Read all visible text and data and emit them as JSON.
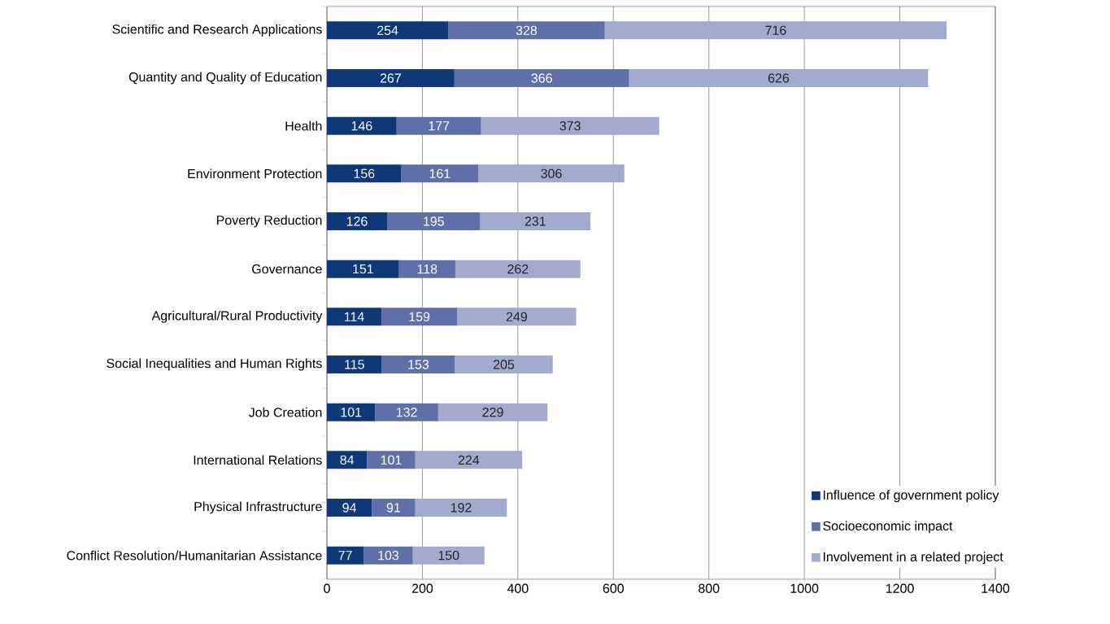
{
  "chart_data": {
    "type": "bar",
    "orientation": "horizontal",
    "stacked": true,
    "data_labels": true,
    "grid": "x",
    "legend": "bottom right",
    "categories": [
      "Scientific and Research Applications",
      "Quantity and Quality of Education",
      "Health",
      "Environment Protection",
      "Poverty Reduction",
      "Governance",
      "Agricultural/Rural Productivity",
      "Social Inequalities and Human Rights",
      "Job Creation",
      "International Relations",
      "Physical Infrastructure",
      "Conflict Resolution/Humanitarian Assistance"
    ],
    "series": [
      {
        "name": "Influence of government policy",
        "color": "#0e3878",
        "values": [
          254,
          267,
          146,
          156,
          126,
          151,
          114,
          115,
          101,
          84,
          94,
          77
        ]
      },
      {
        "name": "Socioeconomic impact",
        "color": "#5f70a8",
        "values": [
          328,
          366,
          177,
          161,
          195,
          118,
          159,
          153,
          132,
          101,
          91,
          103
        ]
      },
      {
        "name": "Involvement in a related project",
        "color": "#a3aad0",
        "values": [
          716,
          626,
          373,
          306,
          231,
          262,
          249,
          205,
          229,
          224,
          192,
          150
        ]
      }
    ],
    "xlim": [
      0,
      1400
    ],
    "xticks": [
      0,
      200,
      400,
      600,
      800,
      1000,
      1200,
      1400
    ]
  }
}
